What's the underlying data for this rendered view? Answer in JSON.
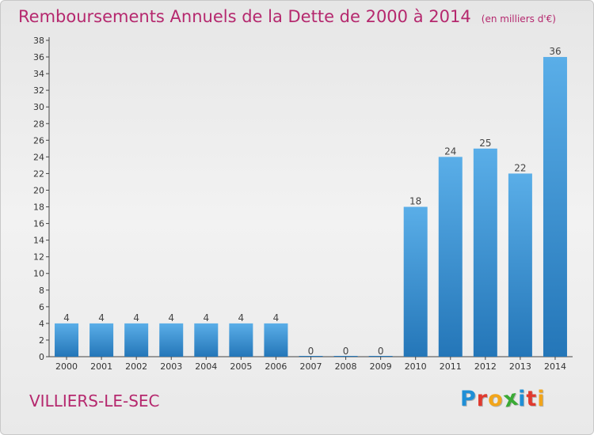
{
  "header": {
    "title": "Remboursements Annuels de la Dette de 2000 à 2014",
    "subtitle": "(en milliers d'€)"
  },
  "footer": {
    "place": "VILLIERS-LE-SEC",
    "brand": "Proxiti",
    "brand_letters": [
      {
        "char": "P",
        "color": "#1f8fd6"
      },
      {
        "char": "r",
        "color": "#e03a2f"
      },
      {
        "char": "o",
        "color": "#f2a51a"
      },
      {
        "char": "x",
        "color": "#3aaa35"
      },
      {
        "char": "i",
        "color": "#1f8fd6"
      },
      {
        "char": "t",
        "color": "#e03a2f"
      },
      {
        "char": "i",
        "color": "#f2a51a"
      }
    ]
  },
  "chart_data": {
    "type": "bar",
    "categories": [
      "2000",
      "2001",
      "2002",
      "2003",
      "2004",
      "2005",
      "2006",
      "2007",
      "2008",
      "2009",
      "2010",
      "2011",
      "2012",
      "2013",
      "2014"
    ],
    "values": [
      4,
      4,
      4,
      4,
      4,
      4,
      4,
      0,
      0,
      0,
      18,
      24,
      25,
      22,
      36
    ],
    "data_labels": [
      "4",
      "4",
      "4",
      "4",
      "4",
      "4",
      "4",
      "0",
      "0",
      "0",
      "18",
      "24",
      "25",
      "22",
      "36"
    ],
    "yticks": [
      0,
      2,
      4,
      6,
      8,
      10,
      12,
      14,
      16,
      18,
      20,
      22,
      24,
      26,
      28,
      30,
      32,
      34,
      36,
      38
    ],
    "ylim": [
      0,
      38
    ],
    "grid": false,
    "legend": "none",
    "colors": {
      "bar_top": "#5aaee8",
      "bar_bottom": "#2476b8",
      "title": "#b5286e",
      "axis": "#444444"
    }
  }
}
